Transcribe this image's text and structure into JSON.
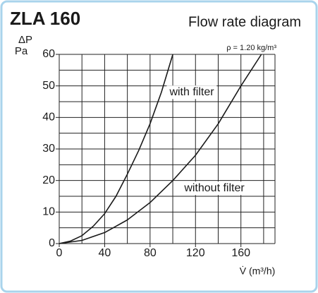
{
  "chart_data": {
    "type": "line",
    "title": "ZLA 160",
    "subtitle": "Flow rate diagram",
    "y_label": "ΔP",
    "y_unit": "Pa",
    "x_label": "V̇ (m³/h)",
    "annotation": "ρ = 1.20 kg/m³",
    "xlim": [
      0,
      190
    ],
    "ylim": [
      0,
      60
    ],
    "xticks": [
      0,
      40,
      80,
      120,
      160
    ],
    "yticks": [
      0,
      10,
      20,
      30,
      40,
      50,
      60
    ],
    "xgrid": [
      0,
      20,
      40,
      60,
      80,
      100,
      120,
      140,
      160,
      180,
      190
    ],
    "ygrid": [
      0,
      5,
      10,
      15,
      20,
      25,
      30,
      35,
      40,
      45,
      50,
      55,
      60
    ],
    "series": [
      {
        "name": "with filter",
        "color": "#1a1a1a",
        "x": [
          0,
          10,
          20,
          30,
          40,
          50,
          60,
          70,
          80,
          90,
          100
        ],
        "values": [
          0,
          0.8,
          2.5,
          5.5,
          9.5,
          15,
          22,
          29.5,
          38,
          48,
          60
        ]
      },
      {
        "name": "without filter",
        "color": "#1a1a1a",
        "x": [
          0,
          20,
          40,
          60,
          80,
          100,
          120,
          140,
          160,
          178
        ],
        "values": [
          0,
          1,
          3.5,
          7.5,
          13,
          20,
          28,
          38,
          50,
          60
        ]
      }
    ]
  }
}
